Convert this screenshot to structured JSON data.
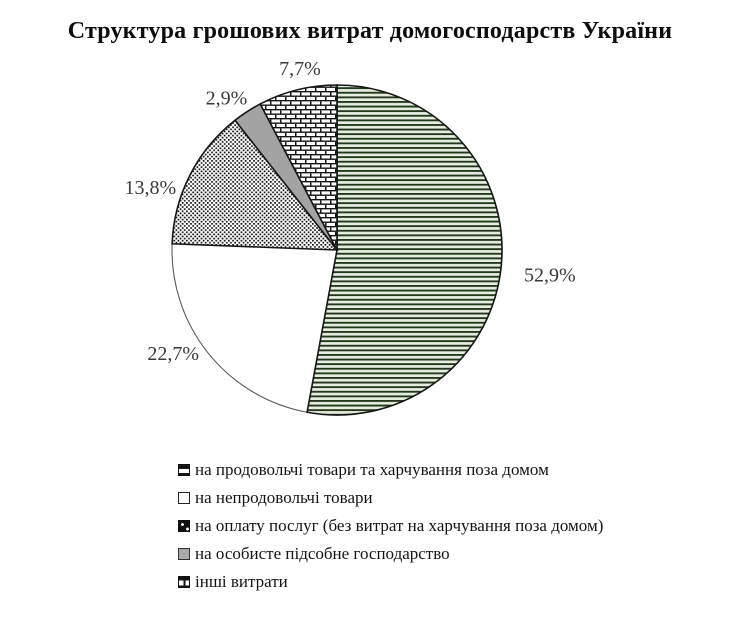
{
  "title": "Структура грошових витрат домогосподарств України",
  "chart_data": {
    "type": "pie",
    "title": "Структура грошових витрат домогосподарств України",
    "start_angle_deg": 0,
    "direction": "clockwise",
    "legend_position": "bottom-left",
    "labels_outside": true,
    "decimal_separator": ",",
    "slices": [
      {
        "label": "на продовольчі товари та харчування поза домом",
        "value": 52.9,
        "display": "52,9%",
        "pattern": "horizontal-stripes-green"
      },
      {
        "label": "на непродовольчі товари",
        "value": 22.7,
        "display": "22,7%",
        "pattern": "solid-white"
      },
      {
        "label": "на оплату послуг (без витрат на харчування поза домом)",
        "value": 13.8,
        "display": "13,8%",
        "pattern": "dots-black-on-white"
      },
      {
        "label": "на особисте підсобне господарство",
        "value": 2.9,
        "display": "2,9%",
        "pattern": "solid-gray"
      },
      {
        "label": "інші витрати",
        "value": 7.7,
        "display": "7,7%",
        "pattern": "bricks-black-on-white"
      }
    ],
    "colors": {
      "stripe_line": "#24391c",
      "stripe_bg": "#e7eee1",
      "dot_black": "#111111",
      "gray_fill": "#a3a3a3",
      "brick_mortar": "#161616",
      "brick_fill": "#ffffff",
      "outline": "#161616",
      "white_slice_outline": "#5a5a5a",
      "label_text": "#3a3a3a"
    }
  }
}
